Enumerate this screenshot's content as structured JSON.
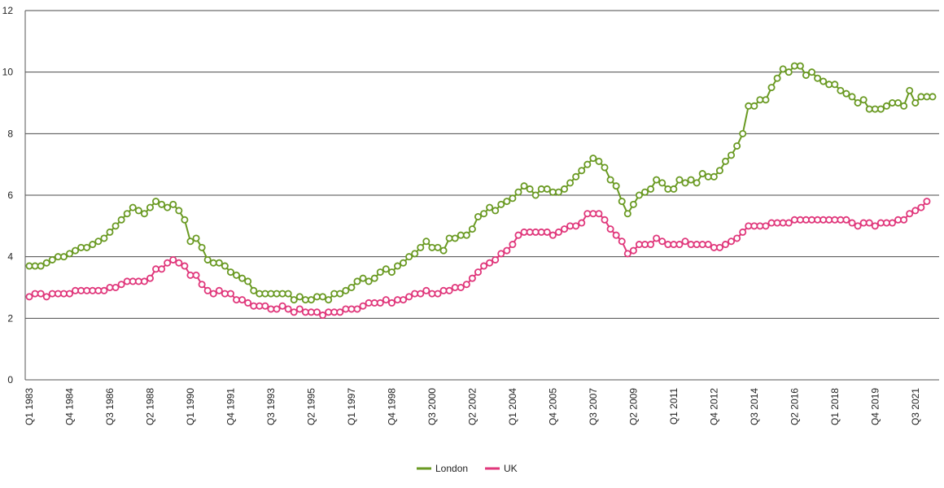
{
  "chart_data": {
    "type": "line",
    "ylim": [
      0,
      12
    ],
    "yticks": [
      0,
      2,
      4,
      6,
      8,
      10,
      12
    ],
    "grid": true,
    "legend_position": "bottom",
    "x_axis_labels": [
      "Q1 1983",
      "Q4 1984",
      "Q3 1986",
      "Q2 1988",
      "Q1 1990",
      "Q4 1991",
      "Q3 1993",
      "Q2 1995",
      "Q1 1997",
      "Q4 1998",
      "Q3 2000",
      "Q2 2002",
      "Q1 2004",
      "Q4 2005",
      "Q3 2007",
      "Q2 2009",
      "Q1 2011",
      "Q4 2012",
      "Q3 2014",
      "Q2 2016",
      "Q1 2018",
      "Q4 2019",
      "Q3 2021"
    ],
    "first_period": "Q1 1983",
    "series": [
      {
        "name": "London",
        "color": "#6a9a23",
        "values": [
          3.7,
          3.7,
          3.7,
          3.8,
          3.9,
          4.0,
          4.0,
          4.1,
          4.2,
          4.3,
          4.3,
          4.4,
          4.5,
          4.6,
          4.8,
          5.0,
          5.2,
          5.4,
          5.6,
          5.5,
          5.4,
          5.6,
          5.8,
          5.7,
          5.6,
          5.7,
          5.5,
          5.2,
          4.5,
          4.6,
          4.3,
          3.9,
          3.8,
          3.8,
          3.7,
          3.5,
          3.4,
          3.3,
          3.2,
          2.9,
          2.8,
          2.8,
          2.8,
          2.8,
          2.8,
          2.8,
          2.6,
          2.7,
          2.6,
          2.6,
          2.7,
          2.7,
          2.6,
          2.8,
          2.8,
          2.9,
          3.0,
          3.2,
          3.3,
          3.2,
          3.3,
          3.5,
          3.6,
          3.5,
          3.7,
          3.8,
          4.0,
          4.1,
          4.3,
          4.5,
          4.3,
          4.3,
          4.2,
          4.6,
          4.6,
          4.7,
          4.7,
          4.9,
          5.3,
          5.4,
          5.6,
          5.5,
          5.7,
          5.8,
          5.9,
          6.1,
          6.3,
          6.2,
          6.0,
          6.2,
          6.2,
          6.1,
          6.1,
          6.2,
          6.4,
          6.6,
          6.8,
          7.0,
          7.2,
          7.1,
          6.9,
          6.5,
          6.3,
          5.8,
          5.4,
          5.7,
          6.0,
          6.1,
          6.2,
          6.5,
          6.4,
          6.2,
          6.2,
          6.5,
          6.4,
          6.5,
          6.4,
          6.7,
          6.6,
          6.6,
          6.8,
          7.1,
          7.3,
          7.6,
          8.0,
          8.9,
          8.9,
          9.1,
          9.1,
          9.5,
          9.8,
          10.1,
          10.0,
          10.2,
          10.2,
          9.9,
          10.0,
          9.8,
          9.7,
          9.6,
          9.6,
          9.4,
          9.3,
          9.2,
          9.0,
          9.1,
          8.8,
          8.8,
          8.8,
          8.9,
          9.0,
          9.0,
          8.9,
          9.4,
          9.0,
          9.2,
          9.2,
          9.2
        ]
      },
      {
        "name": "UK",
        "color": "#e0377b",
        "values": [
          2.7,
          2.8,
          2.8,
          2.7,
          2.8,
          2.8,
          2.8,
          2.8,
          2.9,
          2.9,
          2.9,
          2.9,
          2.9,
          2.9,
          3.0,
          3.0,
          3.1,
          3.2,
          3.2,
          3.2,
          3.2,
          3.3,
          3.6,
          3.6,
          3.8,
          3.9,
          3.8,
          3.7,
          3.4,
          3.4,
          3.1,
          2.9,
          2.8,
          2.9,
          2.8,
          2.8,
          2.6,
          2.6,
          2.5,
          2.4,
          2.4,
          2.4,
          2.3,
          2.3,
          2.4,
          2.3,
          2.2,
          2.3,
          2.2,
          2.2,
          2.2,
          2.1,
          2.2,
          2.2,
          2.2,
          2.3,
          2.3,
          2.3,
          2.4,
          2.5,
          2.5,
          2.5,
          2.6,
          2.5,
          2.6,
          2.6,
          2.7,
          2.8,
          2.8,
          2.9,
          2.8,
          2.8,
          2.9,
          2.9,
          3.0,
          3.0,
          3.1,
          3.3,
          3.5,
          3.7,
          3.8,
          3.9,
          4.1,
          4.2,
          4.4,
          4.7,
          4.8,
          4.8,
          4.8,
          4.8,
          4.8,
          4.7,
          4.8,
          4.9,
          5.0,
          5.0,
          5.1,
          5.4,
          5.4,
          5.4,
          5.2,
          4.9,
          4.7,
          4.5,
          4.1,
          4.2,
          4.4,
          4.4,
          4.4,
          4.6,
          4.5,
          4.4,
          4.4,
          4.4,
          4.5,
          4.4,
          4.4,
          4.4,
          4.4,
          4.3,
          4.3,
          4.4,
          4.5,
          4.6,
          4.8,
          5.0,
          5.0,
          5.0,
          5.0,
          5.1,
          5.1,
          5.1,
          5.1,
          5.2,
          5.2,
          5.2,
          5.2,
          5.2,
          5.2,
          5.2,
          5.2,
          5.2,
          5.2,
          5.1,
          5.0,
          5.1,
          5.1,
          5.0,
          5.1,
          5.1,
          5.1,
          5.2,
          5.2,
          5.4,
          5.5,
          5.6,
          5.8
        ]
      }
    ]
  }
}
